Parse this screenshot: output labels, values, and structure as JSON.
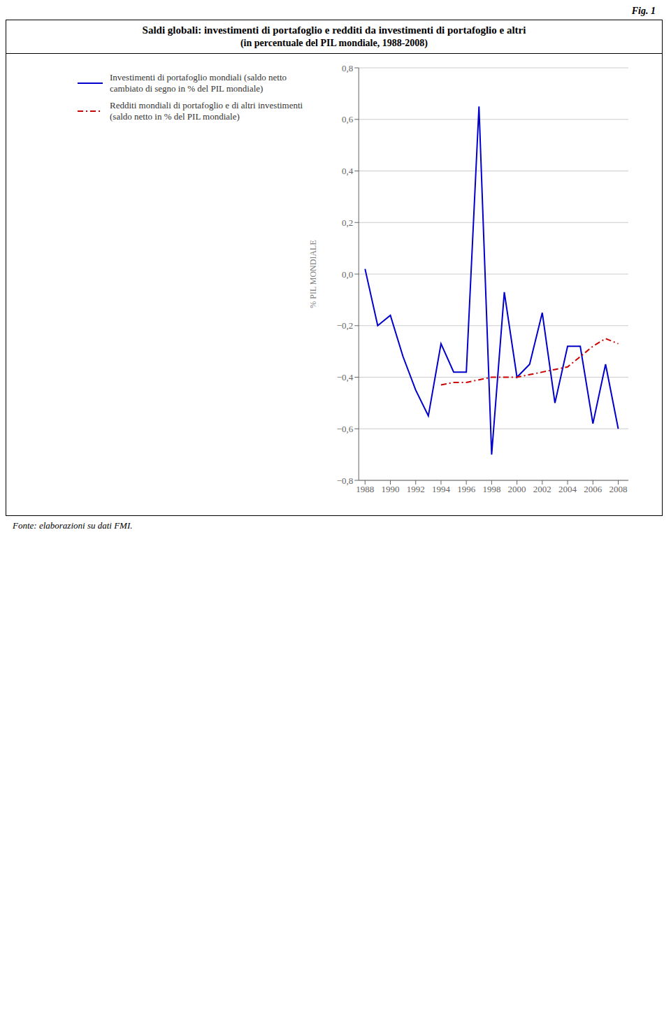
{
  "chart_data": {
    "type": "line",
    "title": "Saldi globali: investimenti di portafoglio e redditi da investimenti di portafoglio e altri",
    "subtitle": "(in percentuale del PIL mondiale, 1988-2008)",
    "y_label": "% PIL MONDIALE",
    "annotations": [
      "Fig. 1",
      "Fonte: elaborazioni su dati FMI."
    ],
    "x": [
      1988,
      1989,
      1990,
      1991,
      1992,
      1993,
      1994,
      1995,
      1996,
      1997,
      1998,
      1999,
      2000,
      2001,
      2002,
      2003,
      2004,
      2005,
      2006,
      2007,
      2008
    ],
    "series": [
      {
        "name": "Investimenti di portafoglio mondiali (saldo netto\ncambiato di segno in % del PIL mondiale)",
        "color": "#0000CC",
        "line_style": "solid",
        "values": [
          0.02,
          -0.2,
          -0.16,
          -0.32,
          -0.45,
          -0.55,
          -0.27,
          -0.38,
          -0.38,
          0.65,
          -0.7,
          -0.07,
          -0.4,
          -0.35,
          -0.15,
          -0.5,
          -0.28,
          -0.28,
          -0.58,
          -0.35,
          -0.6
        ]
      },
      {
        "name": "Redditi mondiali di portafoglio e di altri investimenti\n(saldo netto in % del PIL mondiale)",
        "color": "#CC0000",
        "line_style": "dashdot",
        "values": [
          null,
          null,
          null,
          null,
          null,
          null,
          -0.43,
          -0.42,
          -0.42,
          -0.41,
          -0.4,
          -0.4,
          -0.4,
          -0.39,
          -0.38,
          -0.37,
          -0.36,
          -0.32,
          -0.28,
          -0.25,
          -0.27
        ]
      }
    ],
    "xlim": [
      1987.5,
      2008.8
    ],
    "xticks": [
      1988,
      1990,
      1992,
      1994,
      1996,
      1998,
      2000,
      2002,
      2004,
      2006,
      2008
    ],
    "ylim": [
      -0.8,
      0.8
    ],
    "yticks": [
      {
        "value": -0.8,
        "label": "−0,8"
      },
      {
        "value": -0.6,
        "label": "−0,6"
      },
      {
        "value": -0.4,
        "label": "−0,4"
      },
      {
        "value": -0.2,
        "label": "−0,2"
      },
      {
        "value": 0.0,
        "label": "0,0"
      },
      {
        "value": 0.2,
        "label": "0,2"
      },
      {
        "value": 0.4,
        "label": "0,4"
      },
      {
        "value": 0.6,
        "label": "0,6"
      },
      {
        "value": 0.8,
        "label": "0,8"
      }
    ],
    "grid": true,
    "legend": "upper left"
  }
}
